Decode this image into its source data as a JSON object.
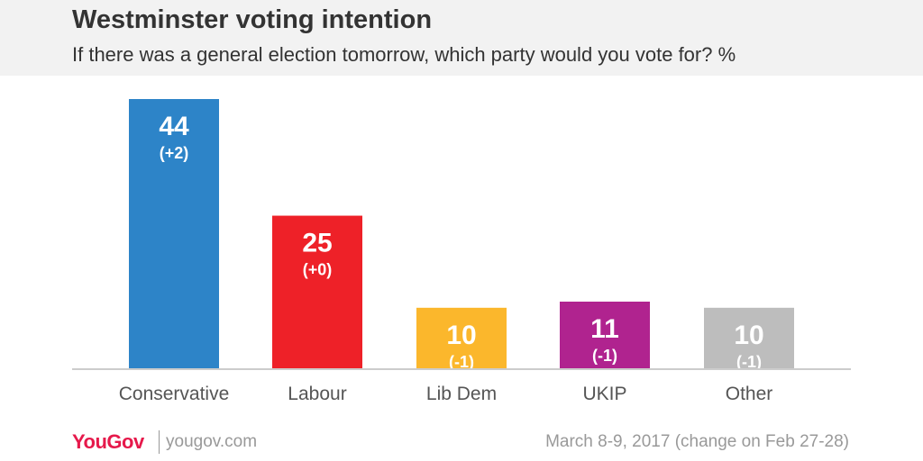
{
  "header": {
    "title": "Westminster voting intention",
    "subtitle": "If there was a general election tomorrow, which party would you vote for? %"
  },
  "footer": {
    "logo": "YouGov",
    "site": "yougov.com",
    "date_note": "March 8-9, 2017 (change on Feb 27-28)"
  },
  "chart_data": {
    "type": "bar",
    "title": "Westminster voting intention",
    "subtitle": "If there was a general election tomorrow, which party would you vote for? %",
    "categories": [
      "Conservative",
      "Labour",
      "Lib Dem",
      "UKIP",
      "Other"
    ],
    "values": [
      44,
      25,
      10,
      11,
      10
    ],
    "changes": [
      "(+2)",
      "(+0)",
      "(-1)",
      "(-1)",
      "(-1)"
    ],
    "colors": [
      "#2d84c8",
      "#ee2128",
      "#fbb72c",
      "#b0238f",
      "#bdbdbd"
    ],
    "ylim": [
      0,
      44
    ],
    "grid": false,
    "legend": "none"
  }
}
